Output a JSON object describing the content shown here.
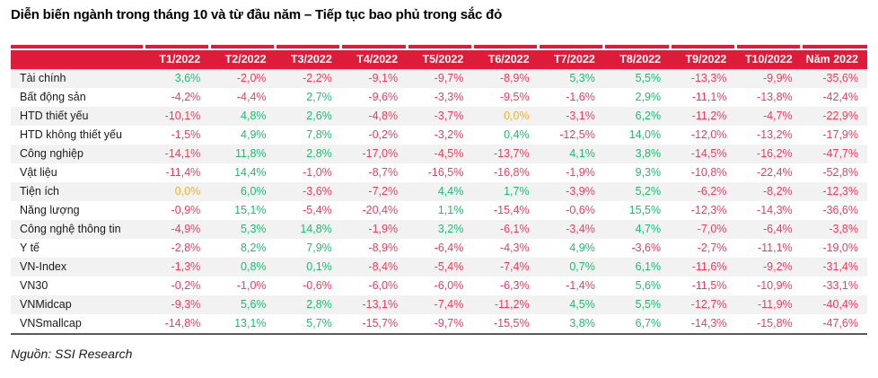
{
  "title": "Diễn biến ngành trong tháng 10 và từ đầu năm – Tiếp tục bao phủ trong sắc đỏ",
  "source": "Nguồn: SSI Research",
  "colors": {
    "header_bg": "#DD1C39",
    "negative": "#EB3D60",
    "positive": "#1FBA73",
    "zero": "#F2AF2C",
    "row_stripe": "#F2F2F2",
    "bottom_rule": "#595959"
  },
  "chart_data": {
    "type": "table",
    "title": "Diễn biến ngành trong tháng 10 và từ đầu năm – Tiếp tục bao phủ trong sắc đỏ",
    "value_format": "percent, comma decimal separator",
    "color_rule": {
      "positive": "green",
      "negative": "pink-red",
      "zero": "amber"
    },
    "columns": [
      "T1/2022",
      "T2/2022",
      "T3/2022",
      "T4/2022",
      "T5/2022",
      "T6/2022",
      "T7/2022",
      "T8/2022",
      "T9/2022",
      "T10/2022",
      "Năm 2022"
    ],
    "rows": [
      {
        "label": "Tài chính",
        "values": [
          "3,6%",
          "-2,0%",
          "-2,2%",
          "-9,1%",
          "-9,7%",
          "-8,9%",
          "5,3%",
          "5,5%",
          "-13,3%",
          "-9,9%",
          "-35,6%"
        ]
      },
      {
        "label": "Bất động sản",
        "values": [
          "-4,2%",
          "-4,4%",
          "2,7%",
          "-9,6%",
          "-3,3%",
          "-9,5%",
          "-1,6%",
          "2,9%",
          "-11,1%",
          "-13,8%",
          "-42,4%"
        ]
      },
      {
        "label": "HTD thiết yếu",
        "values": [
          "-10,1%",
          "4,8%",
          "2,6%",
          "-4,8%",
          "-3,7%",
          "0,0%",
          "-3,1%",
          "6,2%",
          "-11,2%",
          "-4,7%",
          "-22,9%"
        ]
      },
      {
        "label": "HTD không thiết yếu",
        "values": [
          "-1,5%",
          "4,9%",
          "7,8%",
          "-0,2%",
          "-3,2%",
          "0,4%",
          "-12,5%",
          "14,0%",
          "-12,0%",
          "-13,2%",
          "-17,9%"
        ]
      },
      {
        "label": "Công nghiệp",
        "values": [
          "-14,1%",
          "11,8%",
          "2,8%",
          "-17,0%",
          "-4,5%",
          "-13,7%",
          "4,1%",
          "3,8%",
          "-14,5%",
          "-16,2%",
          "-47,7%"
        ]
      },
      {
        "label": "Vật liệu",
        "values": [
          "-11,4%",
          "14,4%",
          "-1,0%",
          "-8,7%",
          "-16,5%",
          "-16,8%",
          "-1,9%",
          "9,3%",
          "-10,8%",
          "-22,4%",
          "-52,8%"
        ]
      },
      {
        "label": "Tiện ích",
        "values": [
          "0,0%",
          "6,0%",
          "-3,6%",
          "-7,2%",
          "4,4%",
          "1,7%",
          "-3,9%",
          "5,2%",
          "-6,2%",
          "-8,2%",
          "-12,3%"
        ]
      },
      {
        "label": "Năng lượng",
        "values": [
          "-0,9%",
          "15,1%",
          "-5,4%",
          "-20,4%",
          "1,1%",
          "-15,4%",
          "-0,6%",
          "15,5%",
          "-12,3%",
          "-14,3%",
          "-36,6%"
        ]
      },
      {
        "label": "Công nghệ thông tin",
        "values": [
          "-4,9%",
          "5,3%",
          "14,8%",
          "-1,9%",
          "3,2%",
          "-6,1%",
          "-3,4%",
          "4,7%",
          "-7,0%",
          "-6,4%",
          "-3,8%"
        ]
      },
      {
        "label": "Y tế",
        "values": [
          "-2,8%",
          "8,2%",
          "7,9%",
          "-8,9%",
          "-6,4%",
          "-4,3%",
          "4,9%",
          "-3,6%",
          "-2,7%",
          "-11,1%",
          "-19,0%"
        ]
      },
      {
        "label": "VN-Index",
        "values": [
          "-1,3%",
          "0,8%",
          "0,1%",
          "-8,4%",
          "-5,4%",
          "-7,4%",
          "0,7%",
          "6,1%",
          "-11,6%",
          "-9,2%",
          "-31,4%"
        ]
      },
      {
        "label": "VN30",
        "values": [
          "-0,2%",
          "-1,0%",
          "-0,6%",
          "-6,0%",
          "-6,0%",
          "-6,3%",
          "-1,4%",
          "5,6%",
          "-11,5%",
          "-10,9%",
          "-33,1%"
        ]
      },
      {
        "label": "VNMidcap",
        "values": [
          "-9,3%",
          "5,6%",
          "2,8%",
          "-13,1%",
          "-7,4%",
          "-11,2%",
          "4,5%",
          "5,5%",
          "-12,7%",
          "-11,9%",
          "-40,4%"
        ]
      },
      {
        "label": "VNSmallcap",
        "values": [
          "-14,8%",
          "13,1%",
          "5,7%",
          "-15,7%",
          "-9,7%",
          "-15,5%",
          "3,8%",
          "6,7%",
          "-14,3%",
          "-15,8%",
          "-47,6%"
        ]
      }
    ]
  }
}
